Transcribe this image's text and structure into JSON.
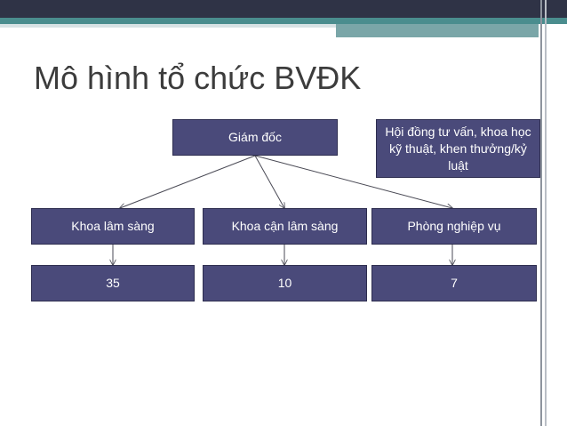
{
  "slide": {
    "title": "Mô hình tổ chức BVĐK"
  },
  "org_chart": {
    "director": "Giám đốc",
    "council": "Hội đồng tư vấn, khoa học kỹ thuật, khen thưởng/kỷ luật",
    "departments": [
      {
        "label": "Khoa lâm sàng",
        "count": "35"
      },
      {
        "label": "Khoa cận lâm sàng",
        "count": "10"
      },
      {
        "label": "Phòng nghiệp vụ",
        "count": "7"
      }
    ]
  },
  "colors": {
    "box_fill": "#4a4a7a",
    "box_border": "#2d2d4f",
    "title_text": "#3c3c3c",
    "accent_teal": "#4a8d8e",
    "topbar_dark": "#2f3346"
  }
}
